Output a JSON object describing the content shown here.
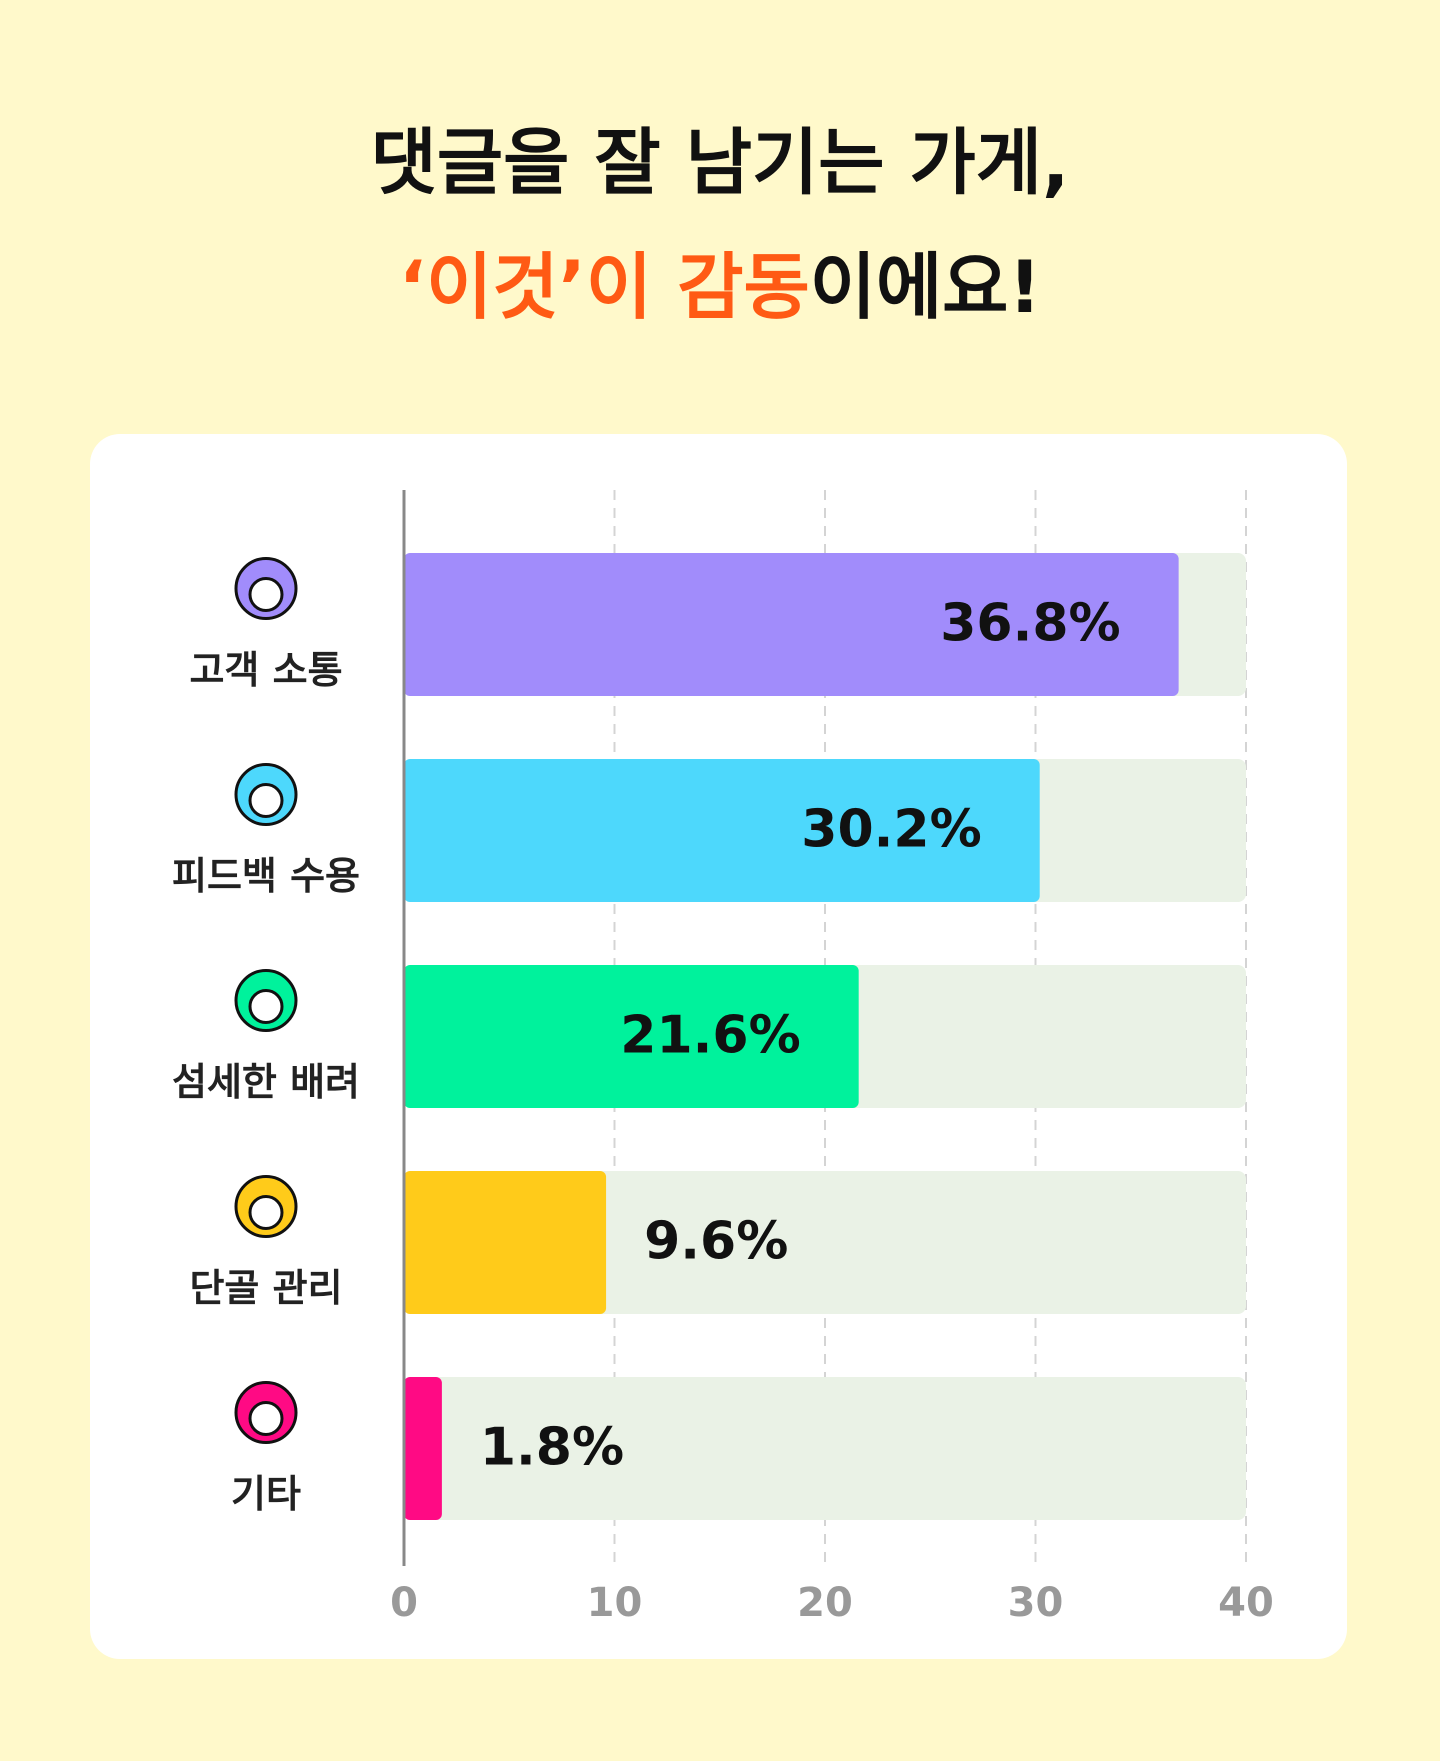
{
  "chart_data": {
    "type": "bar",
    "orientation": "horizontal",
    "title": "댓글을 잘 남기는 가게,",
    "subtitle": [
      "‘이것’이 감동",
      "이에요!"
    ],
    "highlight_color": "#ff5a14",
    "categories": [
      "고객 소통",
      "피드백 수용",
      "섬세한 배려",
      "단골 관리",
      "기타"
    ],
    "values": [
      36.8,
      30.2,
      21.6,
      9.6,
      1.8
    ],
    "value_labels": [
      "36.8%",
      "30.2%",
      "21.6%",
      "9.6%",
      "1.8%"
    ],
    "colors": [
      "#a18cfb",
      "#4dd8fc",
      "#00f29c",
      "#ffcb1a",
      "#ff0a84"
    ],
    "track_color": "#eaf2e6",
    "xlim": [
      0,
      40
    ],
    "xticks": [
      0,
      10,
      20,
      30,
      40
    ],
    "grid": true
  }
}
